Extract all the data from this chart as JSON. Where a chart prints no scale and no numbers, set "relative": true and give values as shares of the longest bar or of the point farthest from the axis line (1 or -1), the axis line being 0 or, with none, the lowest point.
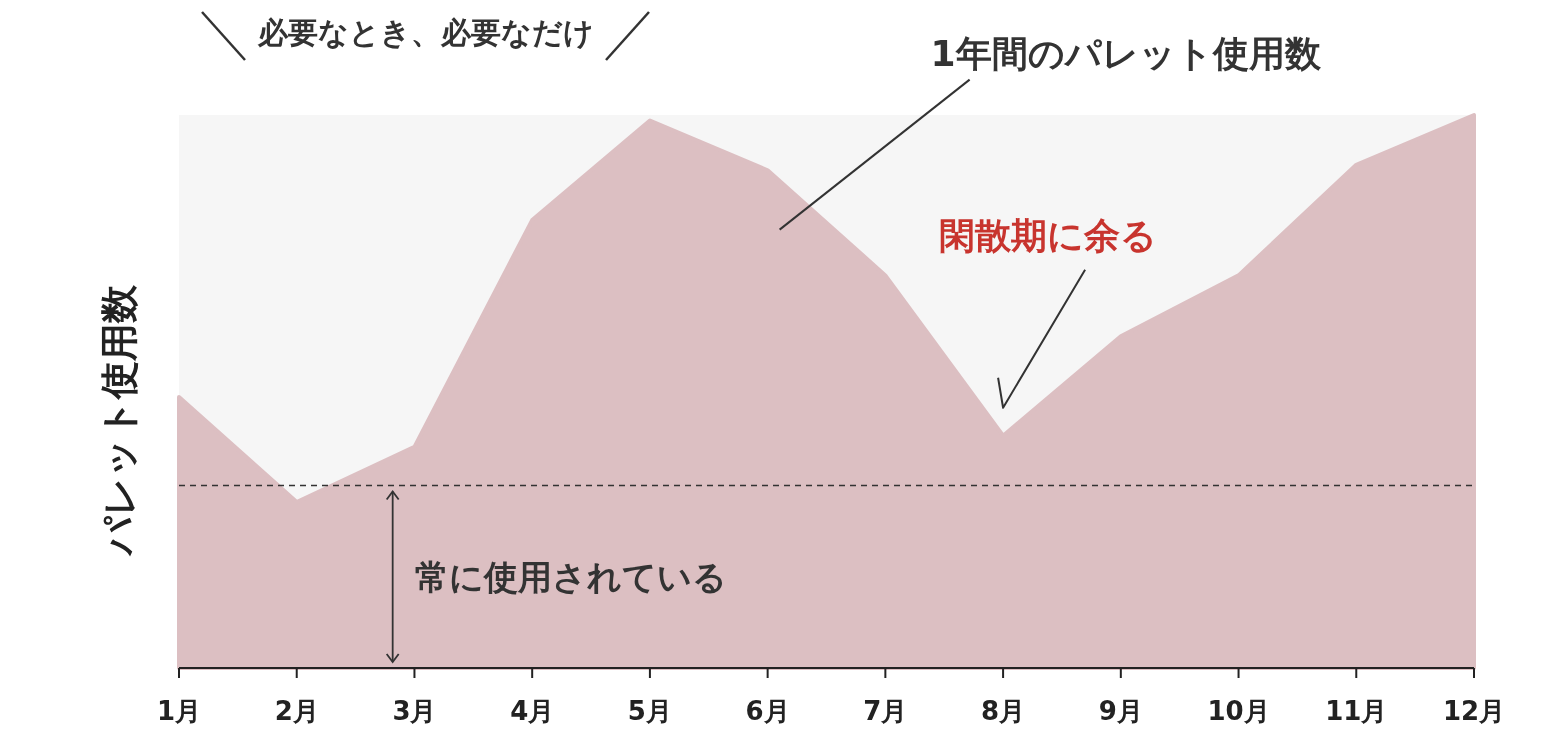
{
  "chart_data": {
    "type": "area",
    "title": "必要なとき、必要なだけ",
    "ylabel": "パレット使用数",
    "relative": true,
    "color": "#dcbfc2",
    "categories": [
      "1月",
      "2月",
      "3月",
      "4月",
      "5月",
      "6月",
      "7月",
      "8月",
      "9月",
      "10月",
      "11月",
      "12月"
    ],
    "values": [
      0.49,
      0.3,
      0.4,
      0.81,
      0.99,
      0.9,
      0.71,
      0.42,
      0.6,
      0.71,
      0.91,
      1.0
    ],
    "ref_lines": [
      {
        "axis": "y",
        "value": 0.33,
        "label": "常に使用されている",
        "color": "#333333",
        "line_style": "dashed"
      }
    ],
    "annotations": [
      "1年間のパレット使用数",
      "閑散期に余る"
    ],
    "grid": false
  }
}
